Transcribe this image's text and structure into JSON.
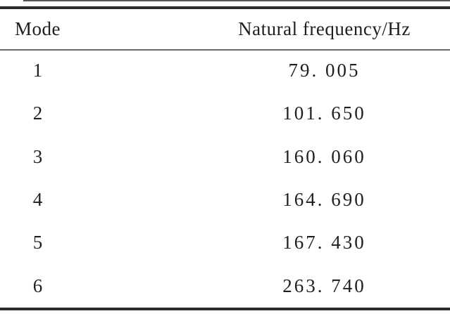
{
  "page": {
    "background": "#ffffff",
    "text_color": "#1f1f1f",
    "rule_color_dark": "#2b2b2b",
    "rule_color_light": "#6b6b6b"
  },
  "table": {
    "headers": [
      "Mode",
      "Natural frequency/Hz"
    ],
    "rows": [
      {
        "mode": "1",
        "frequency": "79. 005"
      },
      {
        "mode": "2",
        "frequency": "101. 650"
      },
      {
        "mode": "3",
        "frequency": "160. 060"
      },
      {
        "mode": "4",
        "frequency": "164. 690"
      },
      {
        "mode": "5",
        "frequency": "167. 430"
      },
      {
        "mode": "6",
        "frequency": "263. 740"
      }
    ]
  }
}
